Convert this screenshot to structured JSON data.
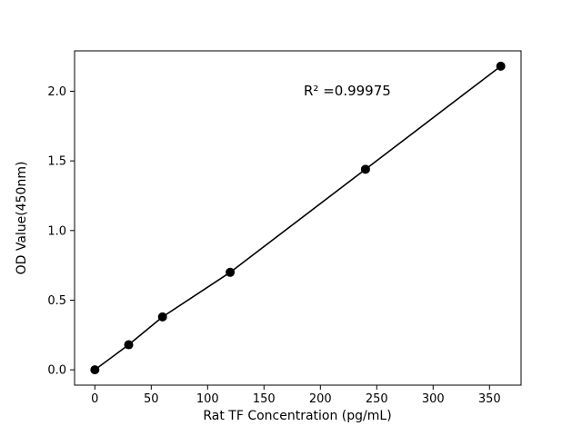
{
  "figure": {
    "background": "#ffffff"
  },
  "chart_data": {
    "type": "scatter",
    "x": [
      0,
      30,
      60,
      120,
      240,
      360
    ],
    "y": [
      0.0,
      0.18,
      0.38,
      0.7,
      1.44,
      2.18
    ],
    "connect_line": true,
    "marker": "circle",
    "marker_color": "#000000",
    "line_color": "#000000",
    "title": "",
    "xlabel": "Rat TF Concentration (pg/mL)",
    "ylabel": "OD Value(450nm)",
    "annotation": {
      "text": "R² =0.99975"
    },
    "xlim": [
      -18,
      378
    ],
    "ylim": [
      -0.11,
      2.29
    ],
    "xticks": [
      0,
      50,
      100,
      150,
      200,
      250,
      300,
      350
    ],
    "yticks": [
      0.0,
      0.5,
      1.0,
      1.5,
      2.0
    ],
    "grid": false,
    "legend": null
  }
}
